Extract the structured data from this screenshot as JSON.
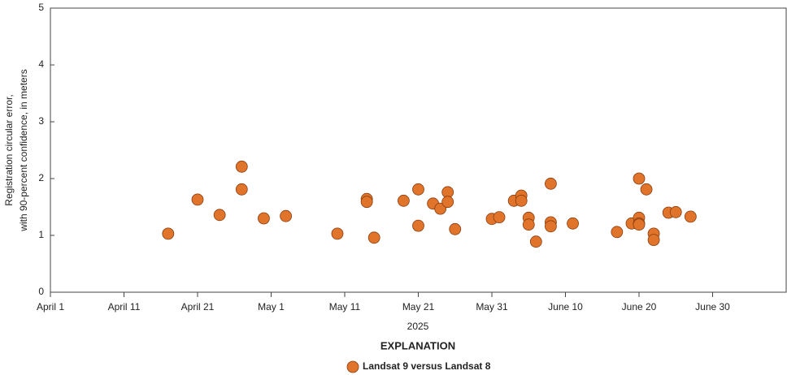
{
  "chart_data": {
    "type": "scatter",
    "ylabel": [
      "Registration circular error,",
      "with 90-percent confidence, in meters"
    ],
    "xlabel": "2025",
    "legend_title": "EXPLANATION",
    "series": [
      {
        "name": "Landsat 9 versus Landsat 8",
        "color": "#e0742a",
        "x": [
          "2025-04-17",
          "2025-04-21",
          "2025-04-24",
          "2025-04-27",
          "2025-04-27",
          "2025-04-30",
          "2025-05-03",
          "2025-05-10",
          "2025-05-14",
          "2025-05-14",
          "2025-05-15",
          "2025-05-19",
          "2025-05-21",
          "2025-05-21",
          "2025-05-23",
          "2025-05-24",
          "2025-05-25",
          "2025-05-25",
          "2025-05-26",
          "2025-05-31",
          "2025-06-01",
          "2025-06-03",
          "2025-06-04",
          "2025-06-04",
          "2025-06-05",
          "2025-06-05",
          "2025-06-06",
          "2025-06-08",
          "2025-06-08",
          "2025-06-08",
          "2025-06-11",
          "2025-06-17",
          "2025-06-19",
          "2025-06-20",
          "2025-06-20",
          "2025-06-20",
          "2025-06-20",
          "2025-06-21",
          "2025-06-22",
          "2025-06-22",
          "2025-06-24",
          "2025-06-25",
          "2025-06-27"
        ],
        "values": [
          1.03,
          1.63,
          1.36,
          2.21,
          1.81,
          1.3,
          1.34,
          1.03,
          1.64,
          1.59,
          0.96,
          1.61,
          1.81,
          1.17,
          1.56,
          1.47,
          1.76,
          1.59,
          1.11,
          1.29,
          1.32,
          1.61,
          1.7,
          1.61,
          1.31,
          1.19,
          0.89,
          1.91,
          1.23,
          1.16,
          1.21,
          1.06,
          1.21,
          2.0,
          1.31,
          1.21,
          1.19,
          1.81,
          1.03,
          0.92,
          1.4,
          1.41,
          1.33
        ]
      }
    ],
    "xlim": [
      "2025-04-01",
      "2025-07-10"
    ],
    "xticks": [
      {
        "value": "2025-04-01",
        "label": "April 1"
      },
      {
        "value": "2025-04-11",
        "label": "April 11"
      },
      {
        "value": "2025-04-21",
        "label": "April 21"
      },
      {
        "value": "2025-05-01",
        "label": "May 1"
      },
      {
        "value": "2025-05-11",
        "label": "May 11"
      },
      {
        "value": "2025-05-21",
        "label": "May 21"
      },
      {
        "value": "2025-05-31",
        "label": "May 31"
      },
      {
        "value": "2025-06-10",
        "label": "June 10"
      },
      {
        "value": "2025-06-20",
        "label": "June 20"
      },
      {
        "value": "2025-06-30",
        "label": "June 30"
      }
    ],
    "ylim": [
      0,
      5
    ],
    "yticks": [
      0,
      1,
      2,
      3,
      4,
      5
    ],
    "grid": false
  }
}
